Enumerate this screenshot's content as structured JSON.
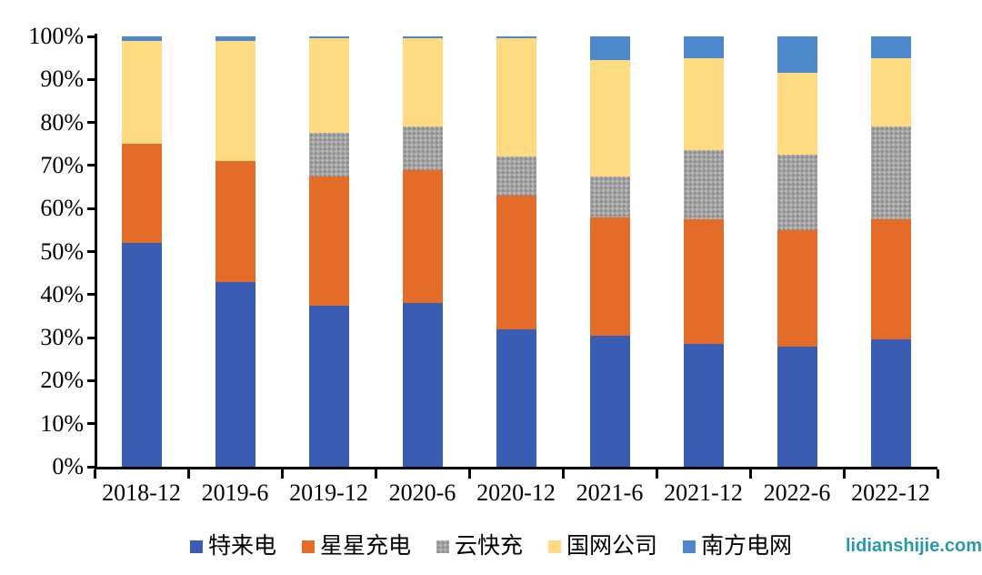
{
  "chart_data": {
    "type": "bar",
    "variant": "stacked-percent-column",
    "title": "",
    "xlabel": "",
    "ylabel": "",
    "ylim": [
      0,
      100
    ],
    "grid": false,
    "legend_position": "bottom",
    "y_tick_values": [
      0,
      10,
      20,
      30,
      40,
      50,
      60,
      70,
      80,
      90,
      100
    ],
    "y_tick_labels": [
      "0%",
      "10%",
      "20%",
      "30%",
      "40%",
      "50%",
      "60%",
      "70%",
      "80%",
      "90%",
      "100%"
    ],
    "categories": [
      "2018-12",
      "2019-6",
      "2019-12",
      "2020-6",
      "2020-12",
      "2021-6",
      "2021-12",
      "2022-6",
      "2022-12"
    ],
    "series": [
      {
        "name": "特来电",
        "color": "#3A5DB4",
        "pattern": "solid",
        "values": [
          52,
          43,
          37.5,
          38,
          32,
          30.5,
          28.5,
          28,
          29.5
        ]
      },
      {
        "name": "星星充电",
        "color": "#E36C29",
        "pattern": "solid",
        "values": [
          23,
          28,
          30,
          31,
          31,
          27.5,
          29,
          27,
          28
        ]
      },
      {
        "name": "云快充",
        "color": "#A3A3A3",
        "pattern": "dots",
        "values": [
          0,
          0,
          10,
          10,
          9,
          9.5,
          16,
          17.5,
          21.5
        ]
      },
      {
        "name": "国网公司",
        "color": "#FEDB80",
        "pattern": "solid",
        "values": [
          24,
          28,
          22,
          20.5,
          27.5,
          27,
          21.5,
          19,
          16
        ]
      },
      {
        "name": "南方电网",
        "color": "#4D88CD",
        "pattern": "solid",
        "values": [
          1,
          1,
          0.5,
          0.5,
          0.5,
          5.5,
          5,
          8.5,
          5
        ]
      }
    ]
  },
  "watermark": {
    "text": "lidianshijie.com",
    "color": "#2899AD"
  }
}
